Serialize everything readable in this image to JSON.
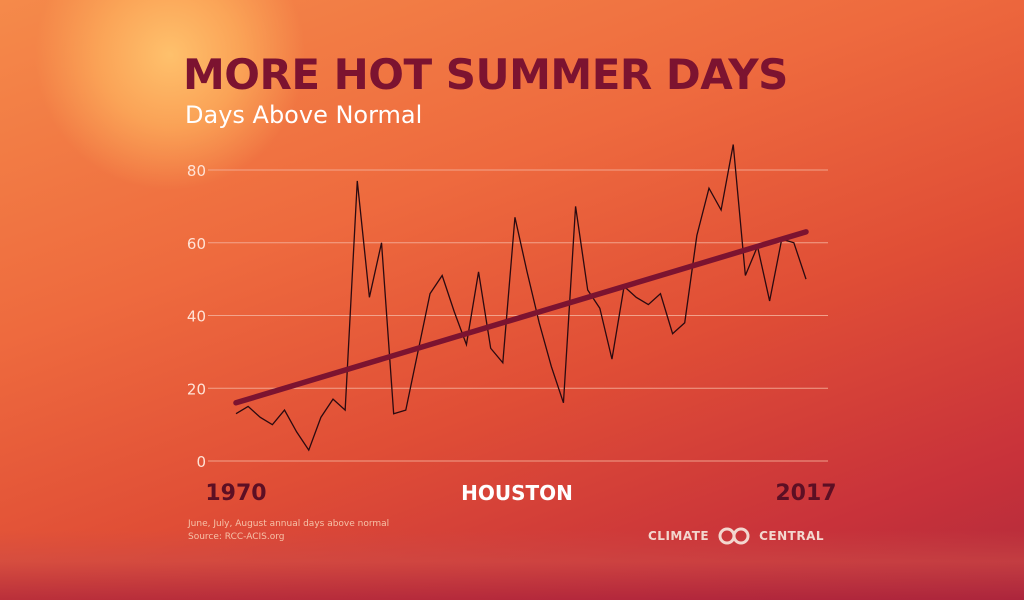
{
  "header": {
    "title": "MORE HOT SUMMER DAYS",
    "subtitle": "Days Above Normal"
  },
  "footer": {
    "note_line1": "June, July, August annual days above normal",
    "note_line2": "Source: RCC-ACIS.org",
    "brand_left": "CLIMATE",
    "brand_right": "CENTRAL"
  },
  "colors": {
    "title": "#7c1330",
    "trend": "#7c1330",
    "series": "#2b0a10",
    "gridline": "#f5b09a"
  },
  "chart_data": {
    "type": "line",
    "title": "MORE HOT SUMMER DAYS",
    "subtitle": "Days Above Normal",
    "location_label": "HOUSTON",
    "x_start_label": "1970",
    "x_end_label": "2017",
    "xlim": [
      1970,
      2017
    ],
    "ylim": [
      0,
      80
    ],
    "yticks": [
      0,
      20,
      40,
      60,
      80
    ],
    "grid": true,
    "x": [
      1970,
      1971,
      1972,
      1973,
      1974,
      1975,
      1976,
      1977,
      1978,
      1979,
      1980,
      1981,
      1982,
      1983,
      1984,
      1985,
      1986,
      1987,
      1988,
      1989,
      1990,
      1991,
      1992,
      1993,
      1994,
      1995,
      1996,
      1997,
      1998,
      1999,
      2000,
      2001,
      2002,
      2003,
      2004,
      2005,
      2006,
      2007,
      2008,
      2009,
      2010,
      2011,
      2012,
      2013,
      2014,
      2015,
      2016,
      2017
    ],
    "series": [
      {
        "values": [
          13,
          15,
          12,
          10,
          14,
          8,
          3,
          12,
          17,
          14,
          77,
          45,
          60,
          13,
          14,
          30,
          46,
          51,
          41,
          32,
          52,
          31,
          27,
          67,
          52,
          38,
          26,
          16,
          70,
          47,
          42,
          28,
          48,
          45,
          43,
          46,
          35,
          38,
          62,
          75,
          69,
          87,
          51,
          59,
          44,
          61,
          60,
          50
        ]
      },
      {
        "values": [
          16,
          63
        ],
        "x": [
          1970,
          2017
        ]
      }
    ]
  }
}
